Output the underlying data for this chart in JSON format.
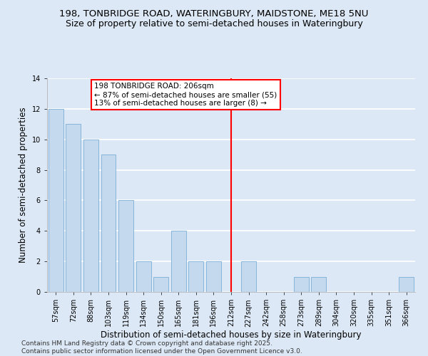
{
  "title_line1": "198, TONBRIDGE ROAD, WATERINGBURY, MAIDSTONE, ME18 5NU",
  "title_line2": "Size of property relative to semi-detached houses in Wateringbury",
  "xlabel": "Distribution of semi-detached houses by size in Wateringbury",
  "ylabel": "Number of semi-detached properties",
  "categories": [
    "57sqm",
    "72sqm",
    "88sqm",
    "103sqm",
    "119sqm",
    "134sqm",
    "150sqm",
    "165sqm",
    "181sqm",
    "196sqm",
    "212sqm",
    "227sqm",
    "242sqm",
    "258sqm",
    "273sqm",
    "289sqm",
    "304sqm",
    "320sqm",
    "335sqm",
    "351sqm",
    "366sqm"
  ],
  "values": [
    12,
    11,
    10,
    9,
    6,
    2,
    1,
    4,
    2,
    2,
    0,
    2,
    0,
    0,
    1,
    1,
    0,
    0,
    0,
    0,
    1
  ],
  "bar_color": "#c5d9ee",
  "bar_edge_color": "#7aaed6",
  "vline_x": 10,
  "annotation_title": "198 TONBRIDGE ROAD: 206sqm",
  "annotation_line2": "← 87% of semi-detached houses are smaller (55)",
  "annotation_line3": "13% of semi-detached houses are larger (8) →",
  "ylim": [
    0,
    14
  ],
  "yticks": [
    0,
    2,
    4,
    6,
    8,
    10,
    12,
    14
  ],
  "footer": "Contains HM Land Registry data © Crown copyright and database right 2025.\nContains public sector information licensed under the Open Government Licence v3.0.",
  "bg_color": "#dce8f5",
  "plot_bg_color": "#dce8f5",
  "grid_color": "#ffffff",
  "title_fontsize": 9.5,
  "subtitle_fontsize": 9,
  "axis_label_fontsize": 8.5,
  "tick_fontsize": 7,
  "footer_fontsize": 6.5,
  "annotation_fontsize": 7.5
}
